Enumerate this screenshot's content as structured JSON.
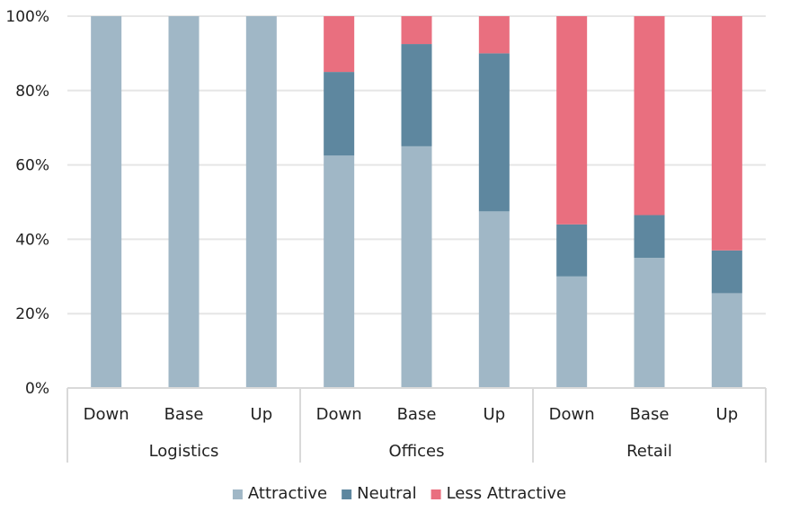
{
  "chart_data": {
    "type": "bar",
    "stacked": true,
    "groups": [
      {
        "label": "Logistics",
        "categories": [
          "Down",
          "Base",
          "Up"
        ]
      },
      {
        "label": "Offices",
        "categories": [
          "Down",
          "Base",
          "Up"
        ]
      },
      {
        "label": "Retail",
        "categories": [
          "Down",
          "Base",
          "Up"
        ]
      }
    ],
    "series": [
      {
        "name": "Attractive",
        "color": "#a0b7c6",
        "values": [
          100,
          100,
          100,
          62.5,
          65,
          47.5,
          30,
          35,
          25.5
        ]
      },
      {
        "name": "Neutral",
        "color": "#5e879f",
        "values": [
          0,
          0,
          0,
          22.5,
          27.5,
          42.5,
          14,
          11.5,
          11.5
        ]
      },
      {
        "name": "Less Attractive",
        "color": "#e96f7f",
        "values": [
          0,
          0,
          0,
          15,
          7.5,
          10,
          56,
          53.5,
          63
        ]
      }
    ],
    "yticks": [
      "0%",
      "20%",
      "40%",
      "60%",
      "80%",
      "100%"
    ],
    "ylim": [
      0,
      100
    ],
    "grid": true,
    "legend_position": "bottom"
  }
}
